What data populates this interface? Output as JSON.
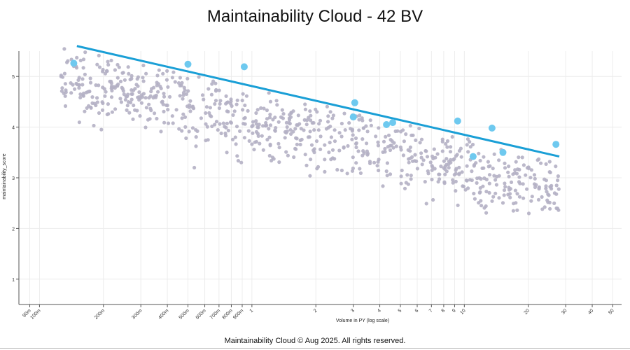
{
  "page": {
    "title": "Maintainability Cloud  - 42 BV",
    "footer": "Maintainability Cloud © Aug 2025. All rights reserved."
  },
  "chart_data": {
    "type": "scatter",
    "title": "Maintainability Cloud  - 42 BV",
    "xlabel": "Volume in PY (log scale)",
    "ylabel": "maintainability_score",
    "xscale": "log",
    "xlim": [
      0.08,
      55
    ],
    "ylim": [
      0.5,
      5.5
    ],
    "grid": true,
    "x_ticks": [
      {
        "v": 0.09,
        "label": "90m"
      },
      {
        "v": 0.1,
        "label": "100m"
      },
      {
        "v": 0.2,
        "label": "200m"
      },
      {
        "v": 0.3,
        "label": "300m"
      },
      {
        "v": 0.4,
        "label": "400m"
      },
      {
        "v": 0.5,
        "label": "500m"
      },
      {
        "v": 0.6,
        "label": "600m"
      },
      {
        "v": 0.7,
        "label": "700m"
      },
      {
        "v": 0.8,
        "label": "800m"
      },
      {
        "v": 0.9,
        "label": "900m"
      },
      {
        "v": 1,
        "label": "1"
      },
      {
        "v": 2,
        "label": "2"
      },
      {
        "v": 3,
        "label": "3"
      },
      {
        "v": 4,
        "label": "4"
      },
      {
        "v": 5,
        "label": "5"
      },
      {
        "v": 6,
        "label": "6"
      },
      {
        "v": 7,
        "label": "7"
      },
      {
        "v": 8,
        "label": "8"
      },
      {
        "v": 9,
        "label": "9"
      },
      {
        "v": 10,
        "label": "10"
      },
      {
        "v": 20,
        "label": "20"
      },
      {
        "v": 30,
        "label": "30"
      },
      {
        "v": 40,
        "label": "40"
      },
      {
        "v": 50,
        "label": "50"
      }
    ],
    "y_ticks": [
      {
        "v": 1,
        "label": "1"
      },
      {
        "v": 2,
        "label": "2"
      },
      {
        "v": 3,
        "label": "3"
      },
      {
        "v": 4,
        "label": "4"
      },
      {
        "v": 5,
        "label": "5"
      }
    ],
    "trend_line": {
      "x": [
        0.15,
        28
      ],
      "y": [
        5.6,
        3.42
      ],
      "color": "#1a9fd6"
    },
    "highlighted_points": {
      "color": "#6ec9ef",
      "points": [
        [
          0.145,
          5.26
        ],
        [
          0.5,
          5.24
        ],
        [
          0.92,
          5.19
        ],
        [
          3.05,
          4.48
        ],
        [
          3.0,
          4.2
        ],
        [
          4.3,
          4.05
        ],
        [
          4.6,
          4.09
        ],
        [
          9.3,
          4.12
        ],
        [
          11.0,
          3.42
        ],
        [
          13.5,
          3.98
        ],
        [
          15.2,
          3.5
        ],
        [
          27.0,
          3.66
        ]
      ]
    },
    "background_points": {
      "color": "#b4b0c4",
      "count": 820,
      "description": "dense cloud; score declines with log volume, ~0.65 below trend line with spread ~0.45"
    }
  }
}
